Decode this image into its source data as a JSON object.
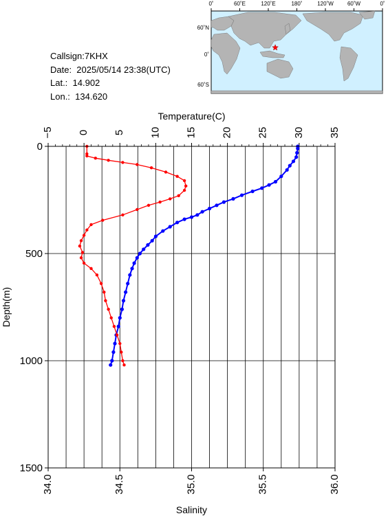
{
  "station": {
    "callsign_line": "Callsign:7KHX",
    "date_line": "Date:  2025/05/14 23:38(UTC)",
    "lat_line": "Lat.:  14.902",
    "lon_line": "Lon.:  134.620"
  },
  "map": {
    "top_ticks": [
      "0˚",
      "60˚E",
      "120˚E",
      "180˚",
      "120˚W",
      "60˚W",
      "0˚"
    ],
    "lat_labels": [
      "60˚N",
      "0˚",
      "60˚S"
    ],
    "colors": {
      "ocean": "#d0f0ff",
      "land": "#b4b4b4",
      "marker": "#ff0000"
    },
    "marker_icon": "star-icon"
  },
  "chart_data": {
    "type": "line",
    "y_axis": {
      "label": "Depth(m)",
      "range": [
        0,
        1500
      ],
      "inverted": true,
      "ticks": [
        "0",
        "500",
        "1000",
        "1500"
      ]
    },
    "temperature_axis": {
      "label": "Temperature(C)",
      "range": [
        -5,
        35
      ],
      "position": "top",
      "ticks": [
        "−5",
        "0",
        "5",
        "10",
        "15",
        "20",
        "25",
        "30",
        "35"
      ]
    },
    "salinity_axis": {
      "label": "Salinity",
      "range": [
        34.0,
        36.0
      ],
      "position": "bottom",
      "ticks": [
        "34.0",
        "34.5",
        "35.0",
        "35.5",
        "36.0"
      ]
    },
    "grid": true,
    "series": [
      {
        "variable": "temperature",
        "color": "#0000ff",
        "points": [
          [
            29.8,
            0
          ],
          [
            29.8,
            10
          ],
          [
            29.7,
            30
          ],
          [
            29.6,
            50
          ],
          [
            29.2,
            70
          ],
          [
            28.7,
            90
          ],
          [
            28.3,
            110
          ],
          [
            27.5,
            140
          ],
          [
            26.7,
            165
          ],
          [
            25.8,
            180
          ],
          [
            24.8,
            195
          ],
          [
            23.5,
            210
          ],
          [
            22.0,
            228
          ],
          [
            20.8,
            245
          ],
          [
            19.5,
            260
          ],
          [
            18.5,
            275
          ],
          [
            17.5,
            290
          ],
          [
            16.5,
            305
          ],
          [
            15.8,
            320
          ],
          [
            15.0,
            330
          ],
          [
            14.0,
            340
          ],
          [
            13.0,
            355
          ],
          [
            12.0,
            375
          ],
          [
            11.0,
            395
          ],
          [
            10.0,
            420
          ],
          [
            9.5,
            440
          ],
          [
            8.9,
            460
          ],
          [
            8.3,
            480
          ],
          [
            7.8,
            500
          ],
          [
            7.4,
            520
          ],
          [
            7.0,
            545
          ],
          [
            6.7,
            570
          ],
          [
            6.4,
            600
          ],
          [
            6.1,
            640
          ],
          [
            5.8,
            680
          ],
          [
            5.5,
            720
          ],
          [
            5.3,
            760
          ],
          [
            5.0,
            800
          ],
          [
            4.8,
            840
          ],
          [
            4.5,
            880
          ],
          [
            4.3,
            920
          ],
          [
            4.1,
            960
          ],
          [
            3.9,
            1000
          ],
          [
            3.7,
            1020
          ]
        ]
      },
      {
        "variable": "salinity",
        "color": "#ff0000",
        "points": [
          [
            34.27,
            0
          ],
          [
            34.27,
            35
          ],
          [
            34.27,
            45
          ],
          [
            34.33,
            55
          ],
          [
            34.42,
            65
          ],
          [
            34.52,
            75
          ],
          [
            34.62,
            85
          ],
          [
            34.72,
            100
          ],
          [
            34.82,
            120
          ],
          [
            34.9,
            140
          ],
          [
            34.95,
            160
          ],
          [
            34.96,
            185
          ],
          [
            34.95,
            205
          ],
          [
            34.91,
            230
          ],
          [
            34.85,
            245
          ],
          [
            34.78,
            260
          ],
          [
            34.7,
            275
          ],
          [
            34.62,
            295
          ],
          [
            34.52,
            320
          ],
          [
            34.38,
            345
          ],
          [
            34.3,
            365
          ],
          [
            34.27,
            390
          ],
          [
            34.25,
            415
          ],
          [
            34.23,
            440
          ],
          [
            34.22,
            465
          ],
          [
            34.24,
            495
          ],
          [
            34.23,
            520
          ],
          [
            34.25,
            545
          ],
          [
            34.3,
            570
          ],
          [
            34.34,
            600
          ],
          [
            34.37,
            640
          ],
          [
            34.39,
            680
          ],
          [
            34.4,
            720
          ],
          [
            34.42,
            760
          ],
          [
            34.44,
            800
          ],
          [
            34.46,
            840
          ],
          [
            34.48,
            880
          ],
          [
            34.5,
            920
          ],
          [
            34.51,
            960
          ],
          [
            34.52,
            1000
          ],
          [
            34.53,
            1020
          ]
        ]
      }
    ]
  }
}
